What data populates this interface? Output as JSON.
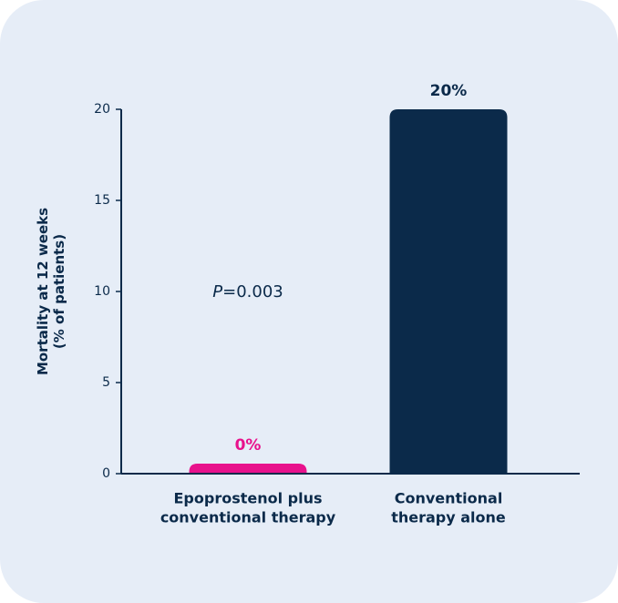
{
  "chart_data": {
    "type": "bar",
    "ylabel": [
      "Mortality at 12 weeks",
      "(% of patients)"
    ],
    "categories": [
      [
        "Epoprostenol plus",
        "conventional therapy"
      ],
      [
        "Conventional",
        "therapy alone"
      ]
    ],
    "values": [
      0,
      20
    ],
    "value_labels": [
      "0%",
      "20%"
    ],
    "colors": [
      "#e8128c",
      "#0b2a4a"
    ],
    "ylim": [
      0,
      20
    ],
    "yticks": [
      0,
      5,
      10,
      15,
      20
    ],
    "annotation": "P=0.003"
  }
}
